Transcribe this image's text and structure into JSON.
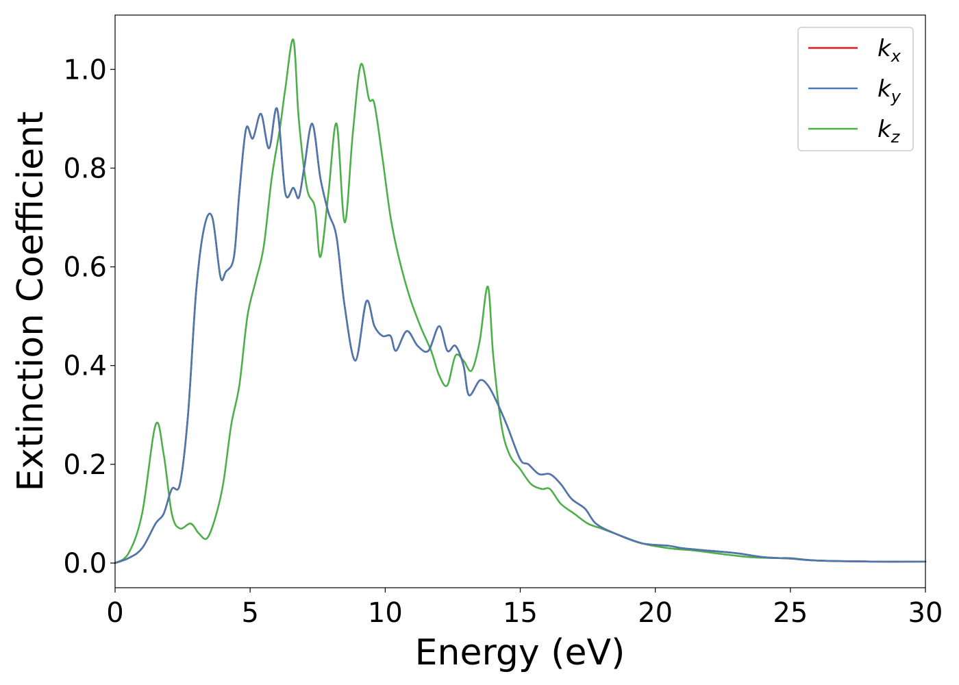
{
  "chart_data": {
    "type": "line",
    "title": "",
    "xlabel": "Energy (eV)",
    "ylabel": "Extinction Coefficient",
    "xlim": [
      0,
      30
    ],
    "ylim": [
      -0.05,
      1.11
    ],
    "grid": false,
    "legend_position": "top-right",
    "x_ticks": [
      0,
      5,
      10,
      15,
      20,
      25,
      30
    ],
    "x_tick_labels": [
      "0",
      "5",
      "10",
      "15",
      "20",
      "25",
      "30"
    ],
    "y_ticks": [
      0.0,
      0.2,
      0.4,
      0.6,
      0.8,
      1.0
    ],
    "y_tick_labels": [
      "0.0",
      "0.2",
      "0.4",
      "0.6",
      "0.8",
      "1.0"
    ],
    "series": [
      {
        "name": "kx",
        "legend_base": "k",
        "legend_sub": "x",
        "color": "#e41a1c",
        "x": [
          0,
          0.5,
          1.0,
          1.5,
          1.8,
          2.1,
          2.4,
          2.7,
          3.0,
          3.3,
          3.6,
          3.9,
          4.1,
          4.4,
          4.6,
          4.85,
          5.1,
          5.4,
          5.7,
          6.0,
          6.3,
          6.6,
          6.8,
          7.0,
          7.3,
          7.6,
          7.9,
          8.2,
          8.5,
          8.9,
          9.3,
          9.6,
          9.9,
          10.2,
          10.4,
          10.8,
          11.2,
          11.6,
          12.0,
          12.3,
          12.6,
          12.9,
          13.1,
          13.5,
          13.8,
          14.1,
          14.5,
          15.0,
          15.3,
          15.7,
          16.1,
          16.5,
          16.9,
          17.4,
          17.8,
          18.5,
          19.5,
          20.5,
          21.0,
          22.0,
          23.0,
          24.0,
          25.0,
          26.0,
          28.0,
          30.0
        ],
        "values": [
          0.0,
          0.01,
          0.03,
          0.08,
          0.1,
          0.15,
          0.16,
          0.3,
          0.55,
          0.68,
          0.7,
          0.58,
          0.59,
          0.62,
          0.75,
          0.88,
          0.86,
          0.91,
          0.84,
          0.92,
          0.75,
          0.76,
          0.74,
          0.8,
          0.89,
          0.78,
          0.71,
          0.66,
          0.52,
          0.41,
          0.53,
          0.48,
          0.46,
          0.46,
          0.43,
          0.47,
          0.44,
          0.43,
          0.48,
          0.43,
          0.44,
          0.4,
          0.34,
          0.37,
          0.36,
          0.33,
          0.28,
          0.21,
          0.2,
          0.18,
          0.18,
          0.16,
          0.13,
          0.11,
          0.08,
          0.06,
          0.04,
          0.035,
          0.03,
          0.025,
          0.02,
          0.012,
          0.009,
          0.005,
          0.003,
          0.003
        ]
      },
      {
        "name": "ky",
        "legend_base": "k",
        "legend_sub": "y",
        "color": "#4a78b0",
        "x": [
          0,
          0.5,
          1.0,
          1.5,
          1.8,
          2.1,
          2.4,
          2.7,
          3.0,
          3.3,
          3.6,
          3.9,
          4.1,
          4.4,
          4.6,
          4.85,
          5.1,
          5.4,
          5.7,
          6.0,
          6.3,
          6.6,
          6.8,
          7.0,
          7.3,
          7.6,
          7.9,
          8.2,
          8.5,
          8.9,
          9.3,
          9.6,
          9.9,
          10.2,
          10.4,
          10.8,
          11.2,
          11.6,
          12.0,
          12.3,
          12.6,
          12.9,
          13.1,
          13.5,
          13.8,
          14.1,
          14.5,
          15.0,
          15.3,
          15.7,
          16.1,
          16.5,
          16.9,
          17.4,
          17.8,
          18.5,
          19.5,
          20.5,
          21.0,
          22.0,
          23.0,
          24.0,
          25.0,
          26.0,
          28.0,
          30.0
        ],
        "values": [
          0.0,
          0.01,
          0.03,
          0.08,
          0.1,
          0.15,
          0.16,
          0.3,
          0.55,
          0.68,
          0.7,
          0.58,
          0.59,
          0.62,
          0.75,
          0.88,
          0.86,
          0.91,
          0.84,
          0.92,
          0.75,
          0.76,
          0.74,
          0.8,
          0.89,
          0.78,
          0.71,
          0.66,
          0.52,
          0.41,
          0.53,
          0.48,
          0.46,
          0.46,
          0.43,
          0.47,
          0.44,
          0.43,
          0.48,
          0.43,
          0.44,
          0.4,
          0.34,
          0.37,
          0.36,
          0.33,
          0.28,
          0.21,
          0.2,
          0.18,
          0.18,
          0.16,
          0.13,
          0.11,
          0.08,
          0.06,
          0.04,
          0.035,
          0.03,
          0.025,
          0.02,
          0.012,
          0.009,
          0.005,
          0.003,
          0.003
        ]
      },
      {
        "name": "kz",
        "legend_base": "k",
        "legend_sub": "z",
        "color": "#4daf4a",
        "x": [
          0,
          0.5,
          1.0,
          1.5,
          1.8,
          2.1,
          2.4,
          2.8,
          3.1,
          3.4,
          3.7,
          4.0,
          4.3,
          4.6,
          4.9,
          5.2,
          5.5,
          5.8,
          6.1,
          6.3,
          6.6,
          6.8,
          7.1,
          7.4,
          7.6,
          7.9,
          8.2,
          8.5,
          8.8,
          9.1,
          9.4,
          9.6,
          9.9,
          10.2,
          10.5,
          10.9,
          11.3,
          11.7,
          12.0,
          12.3,
          12.6,
          12.9,
          13.2,
          13.5,
          13.8,
          14.0,
          14.3,
          14.6,
          15.0,
          15.4,
          15.8,
          16.1,
          16.5,
          17.0,
          17.5,
          18.0,
          18.5,
          19.5,
          20.5,
          21.5,
          22.5,
          23.5,
          24.5,
          25.0,
          26.0,
          28.0,
          30.0
        ],
        "values": [
          0.0,
          0.02,
          0.1,
          0.28,
          0.22,
          0.1,
          0.07,
          0.08,
          0.06,
          0.05,
          0.09,
          0.16,
          0.28,
          0.36,
          0.5,
          0.57,
          0.64,
          0.78,
          0.88,
          0.96,
          1.06,
          0.9,
          0.76,
          0.72,
          0.62,
          0.75,
          0.89,
          0.69,
          0.87,
          1.01,
          0.94,
          0.93,
          0.82,
          0.7,
          0.62,
          0.54,
          0.48,
          0.43,
          0.38,
          0.36,
          0.42,
          0.41,
          0.39,
          0.45,
          0.56,
          0.42,
          0.28,
          0.22,
          0.19,
          0.16,
          0.15,
          0.15,
          0.12,
          0.1,
          0.08,
          0.07,
          0.06,
          0.04,
          0.03,
          0.025,
          0.018,
          0.012,
          0.01,
          0.01,
          0.005,
          0.003,
          0.003
        ]
      }
    ]
  }
}
